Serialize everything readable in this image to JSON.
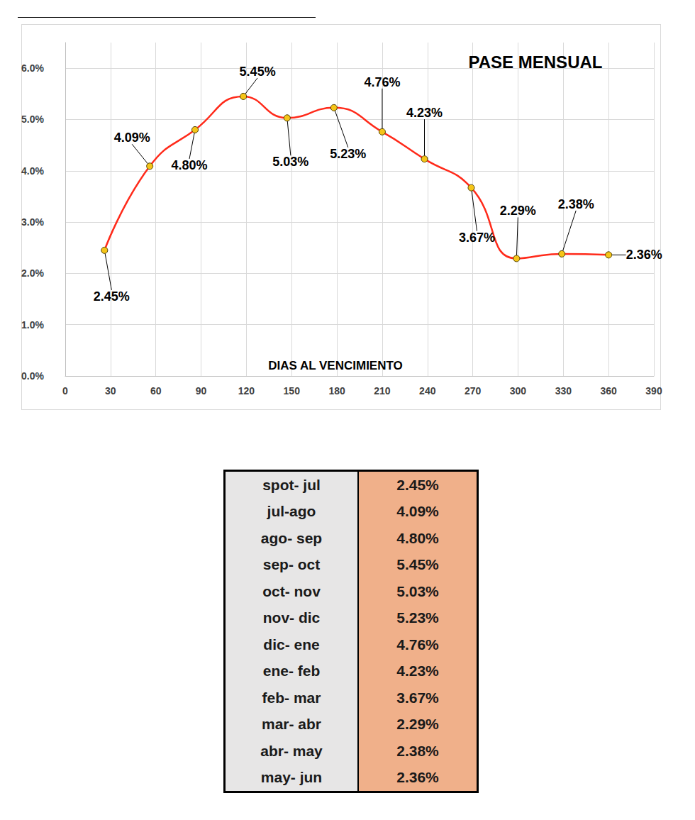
{
  "chart_data": {
    "type": "line",
    "title": "PASE MENSUAL",
    "xlabel": "DIAS AL VENCIMIENTO",
    "x": [
      26,
      56,
      86,
      118,
      147,
      178,
      210,
      238,
      269,
      299,
      329,
      360
    ],
    "values": [
      2.45,
      4.09,
      4.8,
      5.45,
      5.03,
      5.23,
      4.76,
      4.23,
      3.67,
      2.29,
      2.38,
      2.36
    ],
    "value_labels": [
      "2.45%",
      "4.09%",
      "4.80%",
      "5.45%",
      "5.03%",
      "5.23%",
      "4.76%",
      "4.23%",
      "3.67%",
      "2.29%",
      "2.38%",
      "2.36%"
    ],
    "color": "#ff2a1a",
    "marker": "circle",
    "line_style": "solid",
    "data_labels": true,
    "grid": true,
    "xlim": [
      0,
      390
    ],
    "xticks": [
      0,
      30,
      60,
      90,
      120,
      150,
      180,
      210,
      240,
      270,
      300,
      330,
      360,
      390
    ],
    "ylim": [
      0,
      6.5
    ],
    "yticks": [
      {
        "value": 0,
        "label": "0.0%"
      },
      {
        "value": 1,
        "label": "1.0%"
      },
      {
        "value": 2,
        "label": "2.0%"
      },
      {
        "value": 3,
        "label": "3.0%"
      },
      {
        "value": 4,
        "label": "4.0%"
      },
      {
        "value": 5,
        "label": "5.0%"
      },
      {
        "value": 6,
        "label": "6.0%"
      }
    ]
  },
  "table": {
    "rows": [
      [
        "spot- jul",
        "2.45%"
      ],
      [
        "jul-ago",
        "4.09%"
      ],
      [
        "ago- sep",
        "4.80%"
      ],
      [
        "sep- oct",
        "5.45%"
      ],
      [
        "oct- nov",
        "5.03%"
      ],
      [
        "nov- dic",
        "5.23%"
      ],
      [
        "dic- ene",
        "4.76%"
      ],
      [
        "ene- feb",
        "4.23%"
      ],
      [
        "feb- mar",
        "3.67%"
      ],
      [
        "mar- abr",
        "2.29%"
      ],
      [
        "abr- may",
        "2.38%"
      ],
      [
        "may- jun",
        "2.36%"
      ]
    ]
  }
}
